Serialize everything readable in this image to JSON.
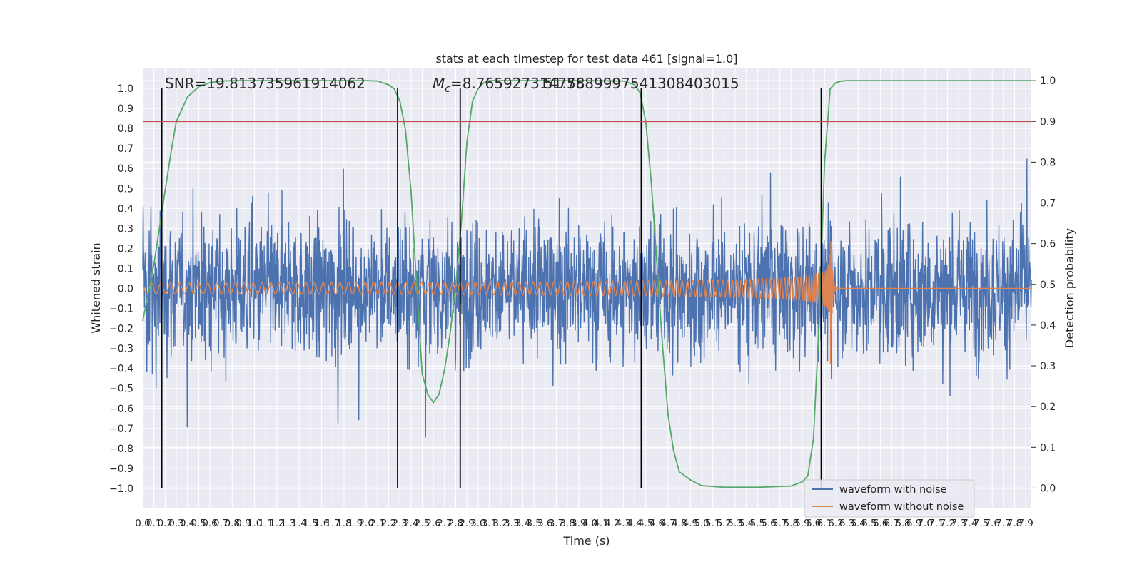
{
  "chart_data": {
    "type": "line",
    "title": "stats at each timestep for test data 461 [signal=1.0]",
    "xlabel": "Time (s)",
    "ylabel": "Whitened strain",
    "y2label": "Detection probability",
    "xlim": [
      0.0,
      7.95
    ],
    "ylim": [
      -1.1,
      1.1
    ],
    "y2lim": [
      -0.05,
      1.03
    ],
    "x_ticks": [
      "0.0",
      "0.1",
      "0.2",
      "0.3",
      "0.4",
      "0.5",
      "0.6",
      "0.7",
      "0.8",
      "0.9",
      "1.0",
      "1.1",
      "1.2",
      "1.3",
      "1.4",
      "1.5",
      "1.6",
      "1.7",
      "1.8",
      "1.9",
      "2.0",
      "2.1",
      "2.2",
      "2.3",
      "2.4",
      "2.5",
      "2.6",
      "2.7",
      "2.8",
      "2.9",
      "3.0",
      "3.1",
      "3.2",
      "3.3",
      "3.4",
      "3.5",
      "3.6",
      "3.7",
      "3.8",
      "3.9",
      "4.0",
      "4.1",
      "4.2",
      "4.3",
      "4.4",
      "4.5",
      "4.6",
      "4.7",
      "4.8",
      "4.9",
      "5.0",
      "5.1",
      "5.2",
      "5.3",
      "5.4",
      "5.5",
      "5.6",
      "5.7",
      "5.8",
      "5.9",
      "6.0",
      "6.1",
      "6.2",
      "6.3",
      "6.4",
      "6.5",
      "6.6",
      "6.7",
      "6.8",
      "6.9",
      "7.0",
      "7.1",
      "7.2",
      "7.3",
      "7.4",
      "7.5",
      "7.6",
      "7.7",
      "7.8",
      "7.9"
    ],
    "y_ticks": [
      "1.0",
      "0.9",
      "0.8",
      "0.7",
      "0.6",
      "0.5",
      "0.4",
      "0.3",
      "0.2",
      "0.1",
      "0.0",
      "−0.1",
      "−0.2",
      "−0.3",
      "−0.4",
      "−0.5",
      "−0.6",
      "−0.7",
      "−0.8",
      "−0.9",
      "−1.0"
    ],
    "y2_ticks": [
      "1.0",
      "0.9",
      "0.8",
      "0.7",
      "0.6",
      "0.5",
      "0.4",
      "0.3",
      "0.2",
      "0.1",
      "0.0"
    ],
    "annotations": {
      "snr": "SNR=19.813735961914062",
      "mc_label": "M",
      "mc_sub": "c",
      "mc_value": "=8.765927314758",
      "mc_overlap": "51.7589997541308403015"
    },
    "threshold": {
      "y2": 0.9,
      "color": "#c44e52"
    },
    "vlines_x": [
      0.17,
      2.28,
      2.84,
      4.46,
      6.07
    ],
    "merger_time": 6.15,
    "detection_probability": {
      "x": [
        0.0,
        0.1,
        0.2,
        0.25,
        0.3,
        0.4,
        0.5,
        0.6,
        0.7,
        0.8,
        1.0,
        1.5,
        2.0,
        2.1,
        2.2,
        2.25,
        2.3,
        2.35,
        2.4,
        2.45,
        2.5,
        2.55,
        2.6,
        2.65,
        2.7,
        2.75,
        2.8,
        2.85,
        2.9,
        2.95,
        3.0,
        3.05,
        3.1,
        3.2,
        3.5,
        4.0,
        4.3,
        4.4,
        4.45,
        4.5,
        4.55,
        4.6,
        4.65,
        4.7,
        4.75,
        4.8,
        4.9,
        5.0,
        5.2,
        5.5,
        5.8,
        5.9,
        5.95,
        6.0,
        6.05,
        6.1,
        6.15,
        6.2,
        6.25,
        6.3,
        6.4,
        6.5,
        7.0,
        7.95
      ],
      "y": [
        0.41,
        0.55,
        0.73,
        0.82,
        0.9,
        0.96,
        0.985,
        0.995,
        0.999,
        1.0,
        1.0,
        1.0,
        1.0,
        0.999,
        0.99,
        0.98,
        0.95,
        0.88,
        0.73,
        0.5,
        0.28,
        0.23,
        0.21,
        0.23,
        0.29,
        0.38,
        0.5,
        0.65,
        0.85,
        0.95,
        0.98,
        0.995,
        1.0,
        1.0,
        1.0,
        1.0,
        0.999,
        0.99,
        0.97,
        0.9,
        0.75,
        0.55,
        0.35,
        0.18,
        0.09,
        0.04,
        0.02,
        0.006,
        0.002,
        0.002,
        0.005,
        0.015,
        0.03,
        0.12,
        0.4,
        0.8,
        0.98,
        0.995,
        0.999,
        1.0,
        1.0,
        1.0,
        1.0,
        1.0
      ]
    },
    "legend": {
      "position": "lower right",
      "entries": [
        {
          "label": "waveform with noise",
          "color": "#4c72b0"
        },
        {
          "label": "waveform without noise",
          "color": "#dd8452"
        }
      ]
    },
    "series_colors": {
      "noise": "#4c72b0",
      "signal": "#dd8452",
      "probability": "#55a868",
      "vlines": "#000000"
    }
  }
}
